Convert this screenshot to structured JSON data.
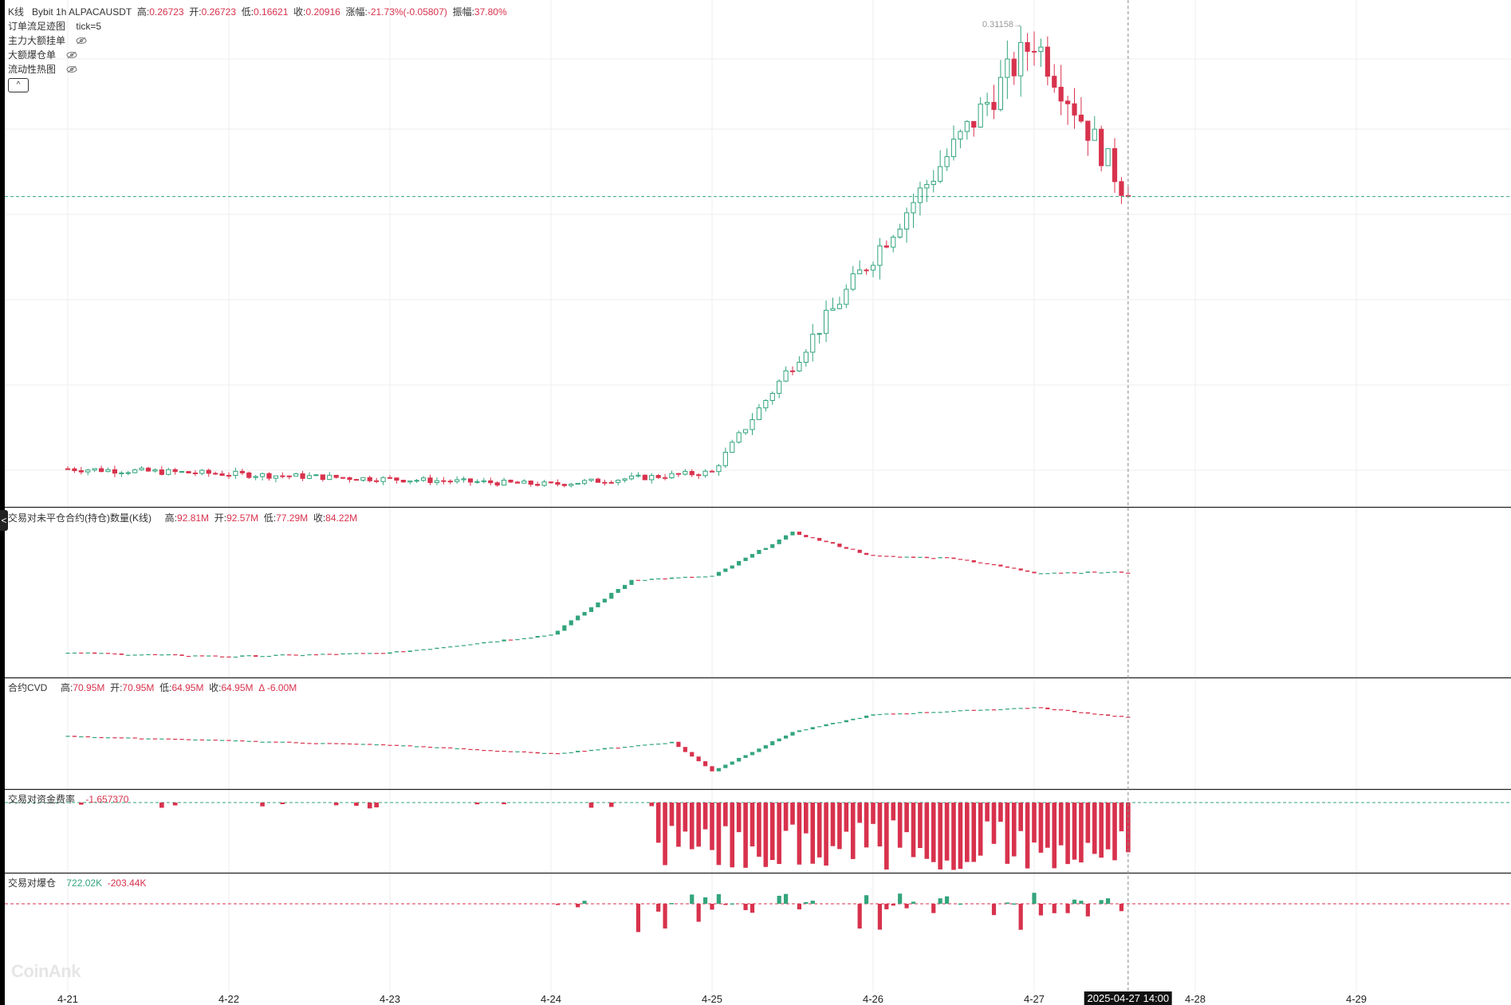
{
  "header": {
    "kline_label": "K线",
    "symbol": "Bybit 1h ALPACAUSDT",
    "high_label": "高:",
    "high": "0.26723",
    "open_label": "开:",
    "open": "0.26723",
    "low_label": "低:",
    "low": "0.16621",
    "close_label": "收:",
    "close": "0.20916",
    "change_label": "涨幅:",
    "change": "-21.73%(-0.05807)",
    "amp_label": "振幅:",
    "amp": "37.80%"
  },
  "overlays": [
    {
      "name": "订单流足迹图",
      "extra": "tick=5"
    },
    {
      "name": "主力大额挂单",
      "extra": ""
    },
    {
      "name": "大额爆仓单",
      "extra": ""
    },
    {
      "name": "流动性热图",
      "extra": ""
    }
  ],
  "collapse_glyph": "^",
  "side_handle_glyph": "<",
  "watermark": "CoinAnk",
  "high_marker": "0.31158→",
  "panels": {
    "oi": {
      "title": "交易对未平仓合约(持仓)数量(K线)",
      "high_label": "高:",
      "high": "92.81M",
      "open_label": "开:",
      "open": "92.57M",
      "low_label": "低:",
      "low": "77.29M",
      "close_label": "收:",
      "close": "84.22M"
    },
    "cvd": {
      "title": "合约CVD",
      "high_label": "高:",
      "high": "70.95M",
      "open_label": "开:",
      "open": "70.95M",
      "low_label": "低:",
      "low": "64.95M",
      "close_label": "收:",
      "close": "64.95M",
      "delta": "Δ -6.00M"
    },
    "funding": {
      "title": "交易对资金费率",
      "value": "-1.657370"
    },
    "liq": {
      "title": "交易对爆仓",
      "long": "722.02K",
      "short": "-203.44K"
    }
  },
  "xaxis": {
    "ticks": [
      "4-21",
      "4-22",
      "4-23",
      "4-24",
      "4-25",
      "4-26",
      "4-27",
      "4-28",
      "4-29"
    ],
    "crosshair_label": "2025-04-27 14:00"
  },
  "colors": {
    "up": "#33a57c",
    "down": "#d8324d",
    "grid": "#eeeeee",
    "crosshair": "#888888",
    "current_price_line": "#33a57c"
  },
  "chart_data": [
    {
      "type": "candlestick",
      "title": "Bybit 1h ALPACAUSDT",
      "interval": "1h",
      "x_start": "2025-04-21 00:00",
      "current_price": 0.20916,
      "ylim": [
        0.03,
        0.318
      ],
      "max_high": 0.31158,
      "ohlc_segments": [
        {
          "date_from": "4-21",
          "date_to": "4-24",
          "open": 0.052,
          "close": 0.043,
          "low": 0.04,
          "high": 0.055,
          "note": "flat drift"
        },
        {
          "date_from": "4-24",
          "date_to": "4-25",
          "open": 0.043,
          "close": 0.05,
          "low": 0.03,
          "high": 0.09
        },
        {
          "date_from": "4-25",
          "date_to": "4-26",
          "open": 0.05,
          "close": 0.175,
          "low": 0.046,
          "high": 0.195
        },
        {
          "date_from": "4-26",
          "date_to": "4-27",
          "open": 0.175,
          "close": 0.3,
          "low": 0.16,
          "high": 0.31158
        },
        {
          "date_from": "4-27",
          "date_to": "4-27 14:00",
          "open": 0.3,
          "close": 0.20916,
          "low": 0.16621,
          "high": 0.26723
        }
      ]
    },
    {
      "type": "candlestick",
      "title": "交易对未平仓合约(持仓)数量(K线)",
      "unit": "M",
      "ylim": [
        30,
        110
      ],
      "segments": [
        {
          "date": "4-21",
          "value": 40
        },
        {
          "date": "4-22",
          "value": 38
        },
        {
          "date": "4-23",
          "value": 40
        },
        {
          "date": "4-24",
          "value": 50
        },
        {
          "date": "4-24 12:00",
          "value": 80
        },
        {
          "date": "4-25",
          "value": 82
        },
        {
          "date": "4-25 12:00",
          "value": 106
        },
        {
          "date": "4-26",
          "value": 93
        },
        {
          "date": "4-26 12:00",
          "value": 92
        },
        {
          "date": "4-27",
          "value": 84
        },
        {
          "date": "4-27 14:00",
          "value": 84.22
        }
      ]
    },
    {
      "type": "candlestick",
      "title": "合约CVD",
      "unit": "M",
      "ylim": [
        20,
        80
      ],
      "segments": [
        {
          "date": "4-21",
          "value": 52
        },
        {
          "date": "4-23",
          "value": 46
        },
        {
          "date": "4-24",
          "value": 40
        },
        {
          "date": "4-24 18:00",
          "value": 48
        },
        {
          "date": "4-25",
          "value": 28
        },
        {
          "date": "4-25 12:00",
          "value": 55
        },
        {
          "date": "4-26",
          "value": 67
        },
        {
          "date": "4-27",
          "value": 72
        },
        {
          "date": "4-27 14:00",
          "value": 64.95
        }
      ]
    },
    {
      "type": "bar",
      "title": "交易对资金费率",
      "current": -1.65737,
      "note": "mostly near zero until 4-24 16:00, then large negative"
    },
    {
      "type": "bar",
      "title": "交易对爆仓",
      "long": "722.02K",
      "short": "-203.44K"
    }
  ]
}
